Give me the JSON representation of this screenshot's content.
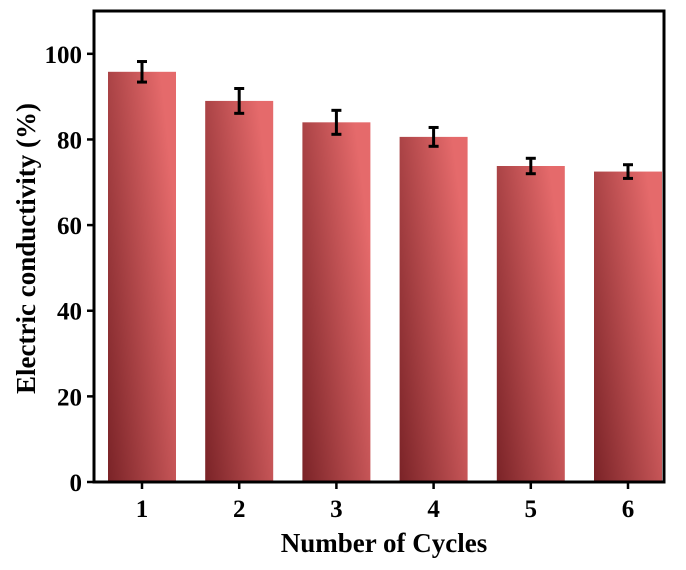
{
  "chart_data": {
    "type": "bar",
    "title": "",
    "xlabel": "Number of Cycles",
    "ylabel": "Electric conductivity (%)",
    "categories": [
      "1",
      "2",
      "3",
      "4",
      "5",
      "6"
    ],
    "values": [
      95.8,
      89.0,
      84.0,
      80.6,
      73.8,
      72.5
    ],
    "errors": [
      2.4,
      2.9,
      2.8,
      2.2,
      1.8,
      1.6
    ],
    "ylim": [
      0,
      110
    ],
    "yticks": [
      "0",
      "20",
      "40",
      "60",
      "80",
      "100"
    ],
    "ytick_values": [
      0,
      20,
      40,
      60,
      80,
      100
    ],
    "grid": false,
    "legend": "none",
    "bar_color_light": "#e56a6b",
    "bar_color_dark": "#7a2327",
    "error_bar_color": "#000000"
  }
}
